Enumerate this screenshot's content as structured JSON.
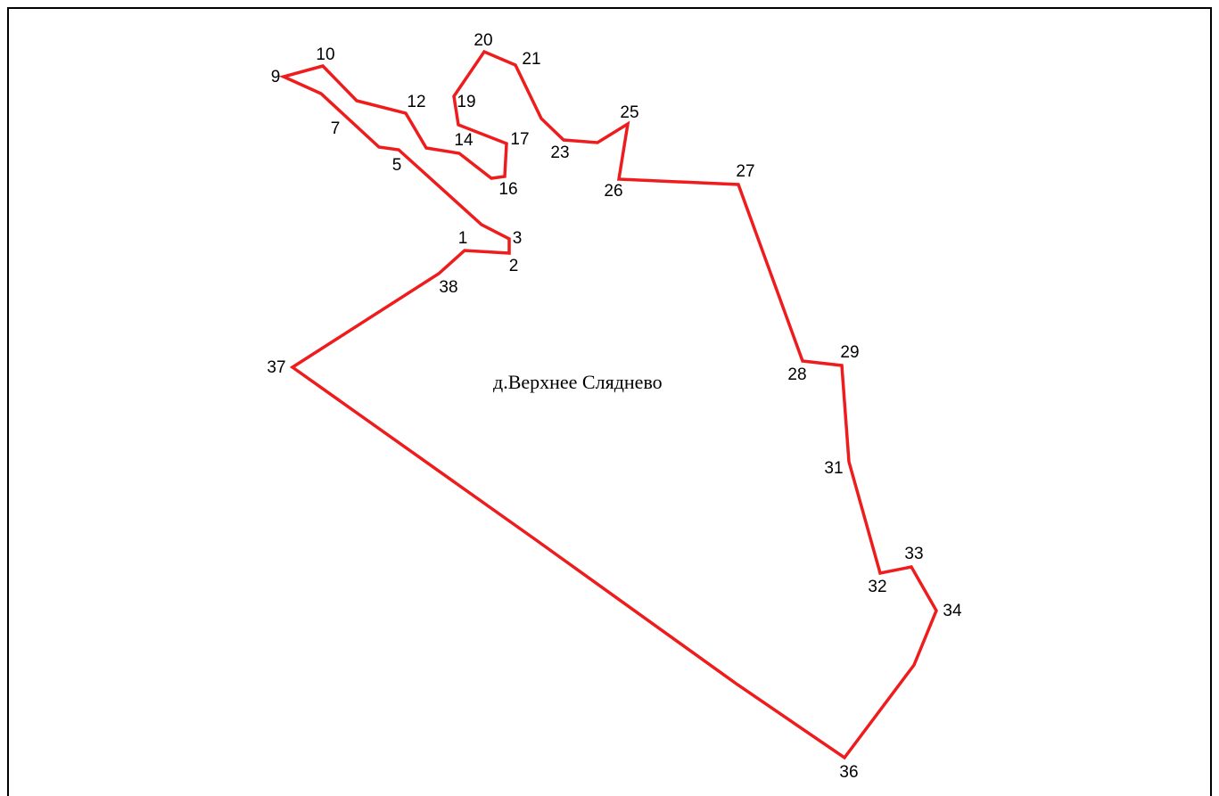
{
  "map": {
    "title": "д.Верхнее Сляднево",
    "points": [
      "1",
      "2",
      "3",
      "5",
      "7",
      "9",
      "10",
      "12",
      "14",
      "16",
      "17",
      "19",
      "20",
      "21",
      "23",
      "25",
      "26",
      "27",
      "28",
      "29",
      "31",
      "32",
      "33",
      "34",
      "36",
      "37",
      "38"
    ]
  }
}
